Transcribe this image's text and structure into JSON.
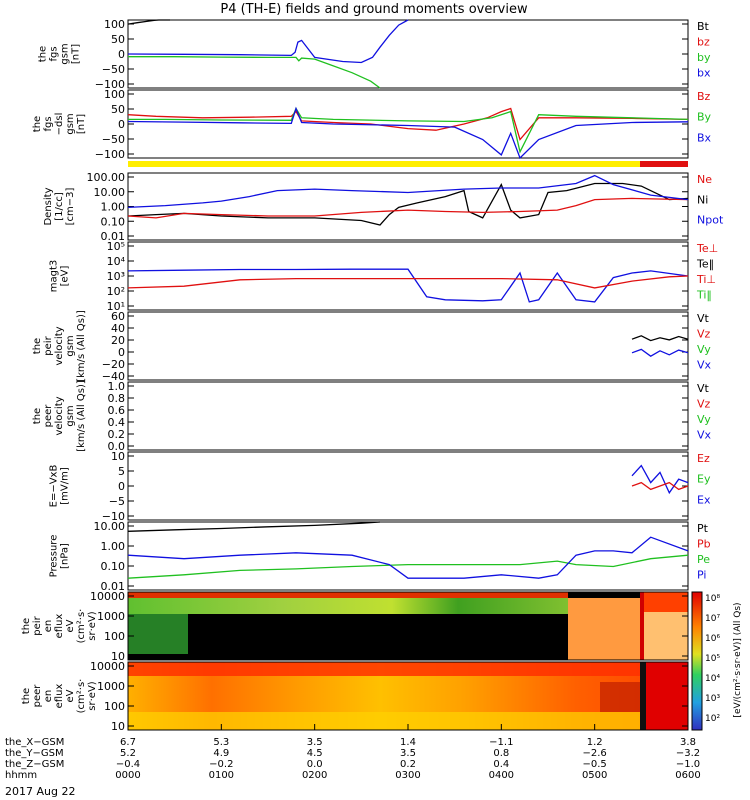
{
  "chart_data": {
    "type": "line",
    "title": "P4 (TH-E) fields and ground moments overview",
    "date": "2017 Aug 22",
    "panels": [
      {
        "id": "fgs",
        "ylabel_lines": [
          "the",
          "fgs",
          "gsm",
          "[nT]"
        ],
        "yticks": [
          "100",
          "50",
          "0",
          "−50",
          "−100"
        ],
        "ylim": [
          -100,
          100
        ],
        "legend": [
          {
            "label": "Bt",
            "color": "#000000"
          },
          {
            "label": "bz",
            "color": "#e01010"
          },
          {
            "label": "by",
            "color": "#20c020"
          },
          {
            "label": "bx",
            "color": "#1010e0"
          }
        ],
        "series": [
          {
            "name": "Bt",
            "color": "#000000",
            "x": [
              0,
              10,
              20,
              28,
              33,
              36,
              40,
              45
            ],
            "y": [
              88,
              92,
              96,
              99,
              101,
              103,
              105,
              108
            ]
          },
          {
            "name": "by",
            "color": "#20c020",
            "x": [
              0,
              50,
              100,
              150,
              180,
              183,
              186,
              200,
              220,
              240,
              260,
              270
            ],
            "y": [
              -8,
              -8,
              -9,
              -10,
              -10,
              -20,
              -12,
              -15,
              -35,
              -55,
              -80,
              -100
            ]
          },
          {
            "name": "bx",
            "color": "#1010e0",
            "x": [
              0,
              60,
              120,
              175,
              179,
              182,
              186,
              200,
              230,
              250,
              262,
              270,
              280,
              290,
              300
            ],
            "y": [
              0,
              -1,
              -2,
              -4,
              5,
              35,
              40,
              -10,
              -22,
              -25,
              -10,
              20,
              55,
              85,
              100
            ]
          }
        ]
      },
      {
        "id": "fgs-dsl",
        "ylabel_lines": [
          "the",
          "fgs",
          "−dsl",
          "gsm",
          "[nT]"
        ],
        "yticks": [
          "100",
          "50",
          "0",
          "−50",
          "−100"
        ],
        "ylim": [
          -120,
          100
        ],
        "legend": [
          {
            "label": "Bz",
            "color": "#e01010"
          },
          {
            "label": "By",
            "color": "#20c020"
          },
          {
            "label": "Bx",
            "color": "#1010e0"
          }
        ],
        "series": [
          {
            "name": "Bz",
            "color": "#e01010",
            "x": [
              0,
              30,
              80,
              130,
              175,
              180,
              186,
              220,
              260,
              300,
              330,
              360,
              385,
              400,
              410,
              420,
              440,
              480,
              540,
              600
            ],
            "y": [
              20,
              15,
              10,
              12,
              15,
              30,
              0,
              -5,
              -10,
              -25,
              -30,
              -10,
              10,
              30,
              40,
              -60,
              10,
              10,
              8,
              5
            ]
          },
          {
            "name": "By",
            "color": "#20c020",
            "x": [
              0,
              40,
              100,
              175,
              180,
              186,
              220,
              300,
              360,
              390,
              410,
              420,
              440,
              480,
              540,
              600
            ],
            "y": [
              5,
              5,
              3,
              2,
              40,
              10,
              5,
              0,
              -2,
              10,
              30,
              -100,
              20,
              15,
              10,
              5
            ]
          },
          {
            "name": "Bx",
            "color": "#1010e0",
            "x": [
              0,
              60,
              120,
              175,
              180,
              186,
              220,
              300,
              350,
              380,
              400,
              410,
              420,
              440,
              480,
              540,
              600
            ],
            "y": [
              -2,
              -4,
              -6,
              -8,
              40,
              -5,
              -10,
              -15,
              -20,
              -60,
              -110,
              -40,
              -120,
              -60,
              -15,
              -5,
              -3
            ]
          }
        ]
      },
      {
        "id": "density",
        "ylabel_lines": [
          "Density",
          "[1/cc]",
          "[cm−3]"
        ],
        "yticks": [
          "100.00",
          "10.00",
          "1.00",
          "0.10",
          "0.01"
        ],
        "ylog": true,
        "ylim": [
          0.01,
          300
        ],
        "legend": [
          {
            "label": "Ne",
            "color": "#e01010"
          },
          {
            "label": "Ni",
            "color": "#000000"
          },
          {
            "label": "Npot",
            "color": "#1010e0"
          }
        ],
        "series": [
          {
            "name": "Ni",
            "color": "#000000",
            "x": [
              0,
              30,
              60,
              100,
              150,
              200,
              250,
              270,
              280,
              290,
              310,
              340,
              360,
              365,
              380,
              400,
              410,
              420,
              440,
              450,
              470,
              500,
              530,
              550,
              580,
              600
            ],
            "y": [
              0.4,
              0.5,
              0.6,
              0.4,
              0.3,
              0.3,
              0.2,
              0.1,
              0.5,
              1.5,
              3,
              8,
              20,
              0.8,
              0.3,
              50,
              1.0,
              0.3,
              0.5,
              15,
              20,
              60,
              60,
              40,
              5,
              6
            ]
          },
          {
            "name": "Ne",
            "color": "#e01010",
            "x": [
              0,
              30,
              60,
              100,
              150,
              200,
              250,
              300,
              340,
              380,
              420,
              460,
              480,
              500,
              540,
              600
            ],
            "y": [
              0.4,
              0.3,
              0.6,
              0.5,
              0.4,
              0.4,
              0.7,
              1.0,
              0.8,
              0.7,
              0.8,
              1.0,
              2.0,
              5,
              6,
              5
            ]
          },
          {
            "name": "Npot",
            "color": "#1010e0",
            "x": [
              0,
              40,
              80,
              100,
              130,
              160,
              200,
              240,
              300,
              360,
              400,
              440,
              480,
              500,
              520,
              560,
              600
            ],
            "y": [
              1.5,
              2,
              3,
              4,
              8,
              20,
              25,
              20,
              15,
              25,
              30,
              30,
              60,
              200,
              50,
              10,
              5
            ]
          }
        ]
      },
      {
        "id": "temperature",
        "ylabel_lines": [
          "magt3",
          "[eV]"
        ],
        "yticks": [
          "10⁵",
          "10⁴",
          "10³",
          "10²",
          "10¹"
        ],
        "ylog": true,
        "ylim": [
          10,
          100000
        ],
        "legend": [
          {
            "label": "Te⊥",
            "color": "#e01010"
          },
          {
            "label": "Te‖",
            "color": "#000000"
          },
          {
            "label": "Ti⊥",
            "color": "#e01010"
          },
          {
            "label": "Ti‖",
            "color": "#20c020"
          }
        ],
        "series": [
          {
            "name": "Ti",
            "color": "#1010e0",
            "x": [
              0,
              60,
              120,
              180,
              240,
              300,
              320,
              340,
              380,
              400,
              420,
              430,
              440,
              460,
              480,
              500,
              520,
              540,
              560,
              600
            ],
            "y": [
              2000,
              2200,
              2400,
              2400,
              2500,
              2500,
              60,
              40,
              35,
              40,
              1500,
              30,
              40,
              1500,
              40,
              30,
              800,
              1500,
              2000,
              1000
            ]
          },
          {
            "name": "Te",
            "color": "#e01010",
            "x": [
              0,
              60,
              120,
              180,
              240,
              300,
              400,
              460,
              500,
              540,
              580,
              600
            ],
            "y": [
              200,
              250,
              600,
              700,
              700,
              700,
              700,
              600,
              200,
              500,
              900,
              1000
            ]
          }
        ]
      },
      {
        "id": "velocity-peir",
        "ylabel_lines": [
          "the",
          "peir",
          "velocity",
          "gsm",
          "[km/s (All Qs)]"
        ],
        "yticks": [
          "60",
          "40",
          "20",
          "0",
          "−20",
          "−40"
        ],
        "ylim": [
          -40,
          60
        ],
        "legend": [
          {
            "label": "Vt",
            "color": "#000000"
          },
          {
            "label": "Vz",
            "color": "#e01010"
          },
          {
            "label": "Vy",
            "color": "#20c020"
          },
          {
            "label": "Vx",
            "color": "#1010e0"
          }
        ],
        "series": [
          {
            "name": "Vt",
            "color": "#000000",
            "x": [
              540,
              550,
              560,
              570,
              580,
              590,
              600
            ],
            "y": [
              20,
              25,
              18,
              22,
              19,
              24,
              20
            ]
          },
          {
            "name": "Vx",
            "color": "#1010e0",
            "x": [
              540,
              550,
              560,
              570,
              580,
              590,
              600
            ],
            "y": [
              0,
              5,
              -5,
              3,
              -3,
              4,
              0
            ]
          }
        ]
      },
      {
        "id": "velocity-peer",
        "ylabel_lines": [
          "the",
          "peer",
          "velocity",
          "gsm",
          "[km/s (All Qs)]"
        ],
        "yticks": [
          "1.0",
          "0.8",
          "0.6",
          "0.4",
          "0.2",
          "0.0"
        ],
        "ylim": [
          0,
          1
        ],
        "legend": [
          {
            "label": "Vt",
            "color": "#000000"
          },
          {
            "label": "Vz",
            "color": "#e01010"
          },
          {
            "label": "Vy",
            "color": "#20c020"
          },
          {
            "label": "Vx",
            "color": "#1010e0"
          }
        ],
        "series": []
      },
      {
        "id": "efield",
        "ylabel_lines": [
          "E=−VxB",
          "[mV/m]"
        ],
        "yticks": [
          "10",
          "5",
          "0",
          "−5",
          "−10"
        ],
        "ylim": [
          -10,
          10
        ],
        "legend": [
          {
            "label": "Ez",
            "color": "#e01010"
          },
          {
            "label": "Ey",
            "color": "#20c020"
          },
          {
            "label": "Ex",
            "color": "#1010e0"
          }
        ],
        "series": [
          {
            "name": "Ex",
            "color": "#1010e0",
            "x": [
              540,
              550,
              560,
              570,
              580,
              590,
              600
            ],
            "y": [
              3,
              6,
              1,
              4,
              -2,
              2,
              1
            ]
          },
          {
            "name": "Ez",
            "color": "#e01010",
            "x": [
              540,
              550,
              560,
              570,
              580,
              590,
              600
            ],
            "y": [
              0,
              1,
              -1,
              0,
              1,
              -1,
              0
            ]
          }
        ]
      },
      {
        "id": "pressure",
        "ylabel_lines": [
          "Pressure",
          "[nPa]"
        ],
        "yticks": [
          "10.00",
          "1.00",
          "0.10",
          "0.01"
        ],
        "ylog": true,
        "ylim": [
          0.005,
          15
        ],
        "legend": [
          {
            "label": "Pt",
            "color": "#000000"
          },
          {
            "label": "Pb",
            "color": "#e01010"
          },
          {
            "label": "Pe",
            "color": "#20c020"
          },
          {
            "label": "Pi",
            "color": "#1010e0"
          }
        ],
        "series": [
          {
            "name": "Pt",
            "color": "#000000",
            "x": [
              0,
              50,
              100,
              150,
              200,
              250,
              270
            ],
            "y": [
              5,
              6,
              7,
              8.5,
              10,
              13,
              15
            ]
          },
          {
            "name": "Pe",
            "color": "#20c020",
            "x": [
              0,
              60,
              120,
              180,
              240,
              300,
              360,
              420,
              460,
              480,
              520,
              560,
              600
            ],
            "y": [
              0.02,
              0.03,
              0.05,
              0.06,
              0.08,
              0.1,
              0.1,
              0.1,
              0.15,
              0.1,
              0.08,
              0.2,
              0.3
            ]
          },
          {
            "name": "Pi",
            "color": "#1010e0",
            "x": [
              0,
              60,
              120,
              180,
              240,
              280,
              300,
              330,
              360,
              400,
              440,
              460,
              480,
              500,
              520,
              540,
              560,
              600
            ],
            "y": [
              0.3,
              0.2,
              0.3,
              0.4,
              0.3,
              0.1,
              0.02,
              0.02,
              0.02,
              0.03,
              0.02,
              0.03,
              0.3,
              0.5,
              0.5,
              0.4,
              2.5,
              0.5
            ]
          }
        ]
      },
      {
        "id": "peir-spec",
        "type": "heatmap",
        "ylabel_lines": [
          "the",
          "peir",
          "en",
          "eflux",
          "eV",
          "(cm²·s·",
          "sr·eV)"
        ],
        "yticks": [
          "10000",
          "1000",
          "100",
          "10"
        ]
      },
      {
        "id": "peer-spec",
        "type": "heatmap",
        "ylabel_lines": [
          "the",
          "peer",
          "en",
          "eflux",
          "eV",
          "(cm²·s·",
          "sr·eV)"
        ],
        "yticks": [
          "10000",
          "1000",
          "100",
          "10"
        ]
      }
    ],
    "colorbar": {
      "ticks": [
        "10⁸",
        "10⁷",
        "10⁶",
        "10⁵",
        "10⁴",
        "10³",
        "10²"
      ],
      "label": "[eV/(cm²·s·sr·eV)] (All Qs)"
    },
    "xaxis": {
      "rows": [
        {
          "label": "the_X−GSM",
          "values": [
            "6.7",
            "5.3",
            "3.5",
            "1.4",
            "−1.1",
            "1.2",
            "3.8"
          ]
        },
        {
          "label": "the_Y−GSM",
          "values": [
            "5.2",
            "4.9",
            "4.5",
            "3.5",
            "0.8",
            "−2.6",
            "−3.2"
          ]
        },
        {
          "label": "the_Z−GSM",
          "values": [
            "−0.4",
            "−0.2",
            "0.0",
            "0.2",
            "0.4",
            "−0.5",
            "−1.0"
          ]
        },
        {
          "label": "hhmm",
          "values": [
            "0000",
            "0100",
            "0200",
            "0300",
            "0400",
            "0500",
            "0600"
          ]
        }
      ],
      "xlim": [
        0,
        600
      ]
    },
    "colors": {
      "red": "#e01010",
      "green": "#20c020",
      "blue": "#1010e0",
      "yellow": "#ffee00",
      "black": "#000000"
    }
  }
}
